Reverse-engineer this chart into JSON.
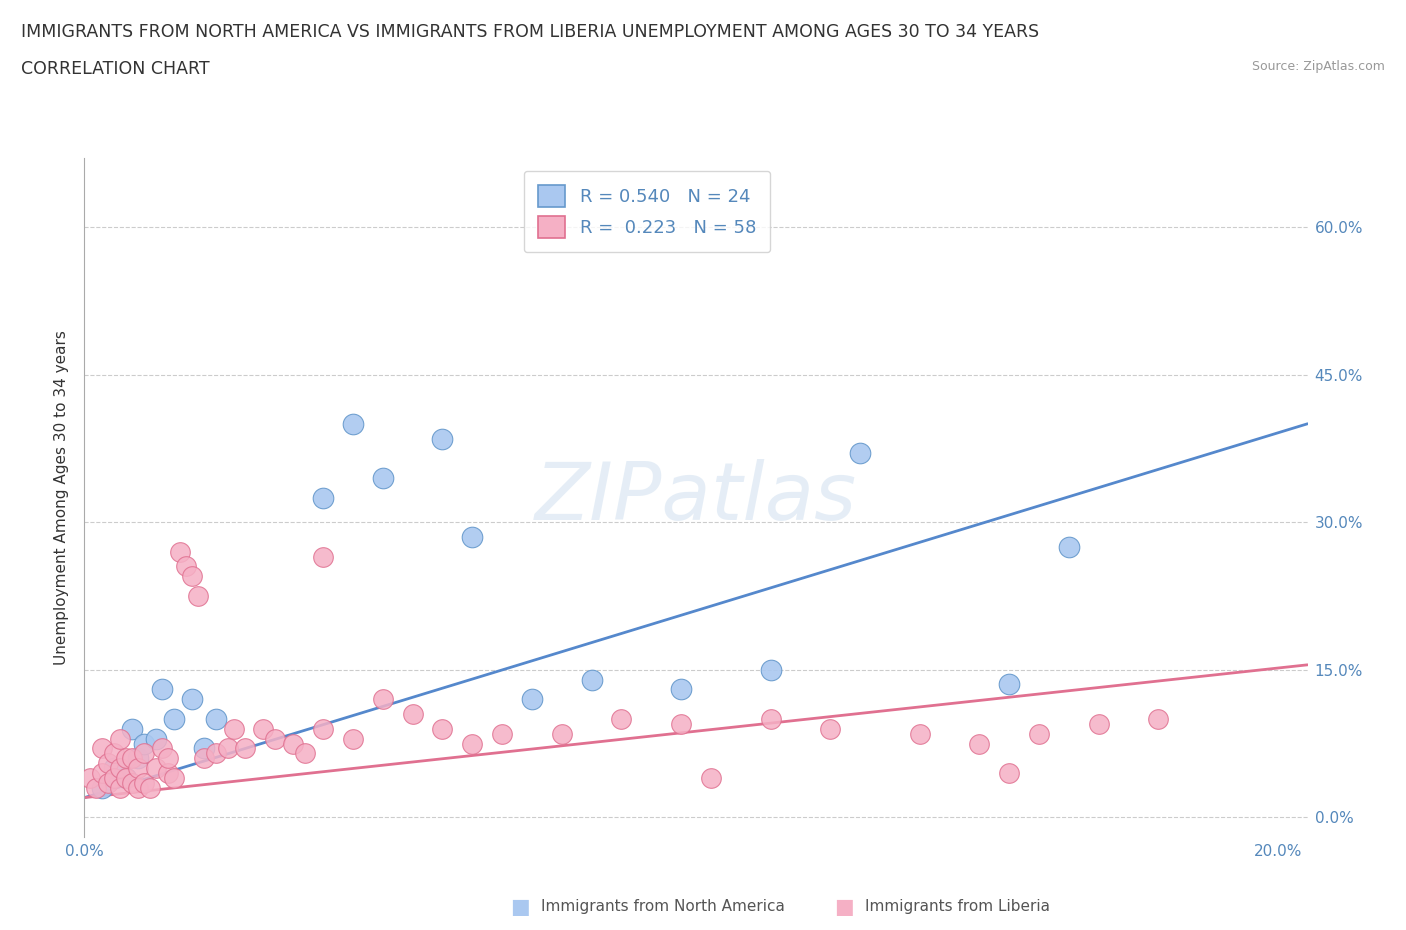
{
  "title_line1": "IMMIGRANTS FROM NORTH AMERICA VS IMMIGRANTS FROM LIBERIA UNEMPLOYMENT AMONG AGES 30 TO 34 YEARS",
  "title_line2": "CORRELATION CHART",
  "source": "Source: ZipAtlas.com",
  "ylabel": "Unemployment Among Ages 30 to 34 years",
  "xlim": [
    0.0,
    0.205
  ],
  "ylim": [
    -0.02,
    0.67
  ],
  "xticks": [
    0.0,
    0.05,
    0.1,
    0.15,
    0.2
  ],
  "yticks": [
    0.0,
    0.15,
    0.3,
    0.45,
    0.6
  ],
  "ytick_labels": [
    "0.0%",
    "15.0%",
    "30.0%",
    "45.0%",
    "60.0%"
  ],
  "xtick_labels": [
    "0.0%",
    "",
    "",
    "",
    "20.0%"
  ],
  "blue_color": "#aac8f0",
  "blue_edge": "#6699cc",
  "pink_color": "#f5b0c5",
  "pink_edge": "#e07090",
  "line_blue": "#5588cc",
  "line_pink": "#e07090",
  "watermark": "ZIPatlas",
  "legend_R1": "R = 0.540",
  "legend_N1": "N = 24",
  "legend_R2": "R =  0.223",
  "legend_N2": "N = 58",
  "blue_scatter_x": [
    0.003,
    0.005,
    0.007,
    0.008,
    0.009,
    0.01,
    0.012,
    0.013,
    0.015,
    0.018,
    0.02,
    0.022,
    0.04,
    0.045,
    0.05,
    0.06,
    0.065,
    0.075,
    0.085,
    0.1,
    0.115,
    0.13,
    0.155,
    0.165
  ],
  "blue_scatter_y": [
    0.03,
    0.05,
    0.04,
    0.09,
    0.06,
    0.075,
    0.08,
    0.13,
    0.1,
    0.12,
    0.07,
    0.1,
    0.325,
    0.4,
    0.345,
    0.385,
    0.285,
    0.12,
    0.14,
    0.13,
    0.15,
    0.37,
    0.135,
    0.275
  ],
  "pink_scatter_x": [
    0.001,
    0.002,
    0.003,
    0.003,
    0.004,
    0.004,
    0.005,
    0.005,
    0.006,
    0.006,
    0.006,
    0.007,
    0.007,
    0.008,
    0.008,
    0.009,
    0.009,
    0.01,
    0.01,
    0.011,
    0.012,
    0.013,
    0.014,
    0.014,
    0.015,
    0.016,
    0.017,
    0.018,
    0.019,
    0.02,
    0.022,
    0.024,
    0.025,
    0.027,
    0.03,
    0.032,
    0.035,
    0.037,
    0.04,
    0.04,
    0.045,
    0.05,
    0.055,
    0.06,
    0.065,
    0.07,
    0.08,
    0.09,
    0.1,
    0.105,
    0.115,
    0.125,
    0.14,
    0.15,
    0.16,
    0.17,
    0.18,
    0.155
  ],
  "pink_scatter_y": [
    0.04,
    0.03,
    0.045,
    0.07,
    0.035,
    0.055,
    0.04,
    0.065,
    0.03,
    0.05,
    0.08,
    0.04,
    0.06,
    0.035,
    0.06,
    0.03,
    0.05,
    0.035,
    0.065,
    0.03,
    0.05,
    0.07,
    0.045,
    0.06,
    0.04,
    0.27,
    0.255,
    0.245,
    0.225,
    0.06,
    0.065,
    0.07,
    0.09,
    0.07,
    0.09,
    0.08,
    0.075,
    0.065,
    0.265,
    0.09,
    0.08,
    0.12,
    0.105,
    0.09,
    0.075,
    0.085,
    0.085,
    0.1,
    0.095,
    0.04,
    0.1,
    0.09,
    0.085,
    0.075,
    0.085,
    0.095,
    0.1,
    0.045
  ],
  "blue_trend_x": [
    0.0,
    0.205
  ],
  "blue_trend_y": [
    0.02,
    0.4
  ],
  "pink_trend_x": [
    0.0,
    0.205
  ],
  "pink_trend_y": [
    0.02,
    0.155
  ],
  "marker_size_blue": 220,
  "marker_size_pink": 200,
  "title_fontsize": 12.5,
  "axis_label_fontsize": 11,
  "tick_fontsize": 11,
  "tick_color": "#5588bb"
}
